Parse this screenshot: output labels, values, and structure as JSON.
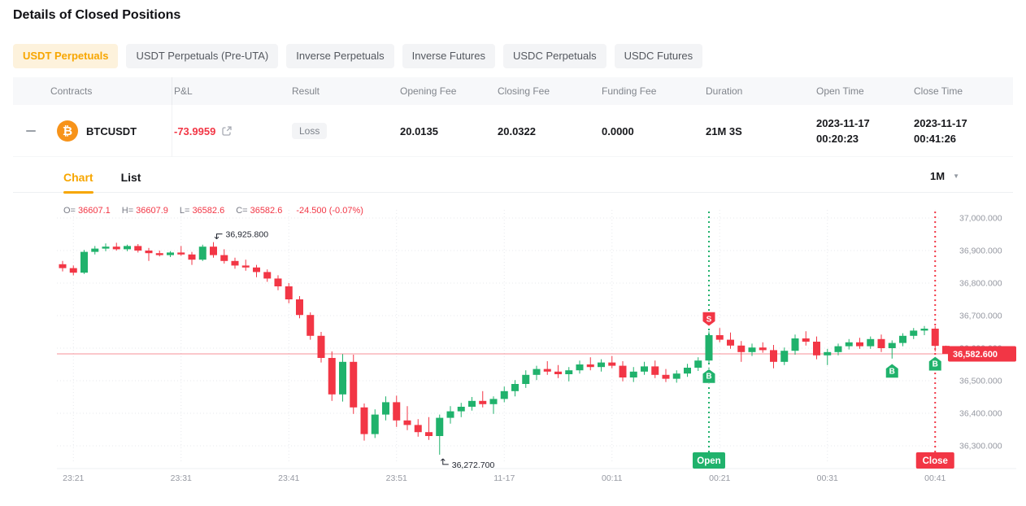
{
  "page": {
    "title": "Details of Closed Positions"
  },
  "tabs": [
    {
      "label": "USDT Perpetuals",
      "active": true
    },
    {
      "label": "USDT Perpetuals (Pre-UTA)",
      "active": false
    },
    {
      "label": "Inverse Perpetuals",
      "active": false
    },
    {
      "label": "Inverse Futures",
      "active": false
    },
    {
      "label": "USDC Perpetuals",
      "active": false
    },
    {
      "label": "USDC Futures",
      "active": false
    }
  ],
  "table": {
    "headers": [
      "Contracts",
      "P&L",
      "Result",
      "Opening Fee",
      "Closing Fee",
      "Funding Fee",
      "Duration",
      "Open Time",
      "Close Time"
    ],
    "row": {
      "contract": "BTCUSDT",
      "pnl": "-73.9959",
      "result": "Loss",
      "opening_fee": "20.0135",
      "closing_fee": "20.0322",
      "funding_fee": "0.0000",
      "duration": "21M 3S",
      "open_date": "2023-11-17",
      "open_clock": "00:20:23",
      "close_date": "2023-11-17",
      "close_clock": "00:41:26"
    }
  },
  "chart_tabs": [
    {
      "label": "Chart",
      "active": true
    },
    {
      "label": "List",
      "active": false
    }
  ],
  "interval": "1M",
  "chart_data": {
    "type": "candlestick",
    "symbol_legend": {
      "parts": [
        {
          "k": "O=",
          "v": "36607.1"
        },
        {
          "k": "H=",
          "v": "36607.9"
        },
        {
          "k": "L=",
          "v": "36582.6"
        },
        {
          "k": "C=",
          "v": "36582.6"
        },
        {
          "k": "",
          "v": "-24.500 (-0.07%)"
        }
      ]
    },
    "colors": {
      "up": "#20b26c",
      "down": "#f23645",
      "accent": "#f7a600",
      "grid": "#e7e9ee",
      "axis_text": "#9598a1",
      "annotation_text": "#1e222d"
    },
    "y_axis": {
      "ticks": [
        {
          "label": "37,000.000",
          "value": 37000
        },
        {
          "label": "36,900.000",
          "value": 36900
        },
        {
          "label": "36,800.000",
          "value": 36800
        },
        {
          "label": "36,700.000",
          "value": 36700
        },
        {
          "label": "36,600.000",
          "value": 36600
        },
        {
          "label": "36,500.000",
          "value": 36500
        },
        {
          "label": "36,400.000",
          "value": 36400
        },
        {
          "label": "36,300.000",
          "value": 36300
        }
      ]
    },
    "x_axis": {
      "ticks": [
        {
          "label": "23:21",
          "index": 1
        },
        {
          "label": "23:31",
          "index": 11
        },
        {
          "label": "23:41",
          "index": 21
        },
        {
          "label": "23:51",
          "index": 31
        },
        {
          "label": "11-17",
          "index": 41
        },
        {
          "label": "00:11",
          "index": 51
        },
        {
          "label": "00:21",
          "index": 61
        },
        {
          "label": "00:31",
          "index": 71
        },
        {
          "label": "00:41",
          "index": 81
        }
      ]
    },
    "last_price": {
      "label": "36,582.600",
      "value": 36582.6
    },
    "annotations": [
      {
        "index": 14,
        "text": "36,925.800",
        "place": "high"
      },
      {
        "index": 35,
        "text": "36,272.700",
        "place": "low"
      }
    ],
    "trade_markers": [
      {
        "index": 60,
        "letter": "S",
        "side": "above",
        "color": "down"
      },
      {
        "index": 60,
        "letter": "B",
        "side": "below",
        "color": "up"
      },
      {
        "index": 77,
        "letter": "B",
        "side": "below",
        "color": "up"
      },
      {
        "index": 81,
        "letter": "B",
        "side": "below",
        "color": "up"
      }
    ],
    "trade_lines": [
      {
        "index": 60,
        "label": "Open",
        "color": "up"
      },
      {
        "index": 81,
        "label": "Close",
        "color": "down"
      }
    ],
    "candles": [
      [
        36858,
        36868,
        36836,
        36846
      ],
      [
        36846,
        36854,
        36824,
        36832
      ],
      [
        36832,
        36902,
        36828,
        36896
      ],
      [
        36896,
        36914,
        36888,
        36906
      ],
      [
        36906,
        36922,
        36898,
        36912
      ],
      [
        36912,
        36924,
        36900,
        36904
      ],
      [
        36904,
        36918,
        36898,
        36914
      ],
      [
        36914,
        36920,
        36894,
        36900
      ],
      [
        36900,
        36908,
        36868,
        36892
      ],
      [
        36892,
        36900,
        36882,
        36886
      ],
      [
        36886,
        36898,
        36880,
        36894
      ],
      [
        36894,
        36914,
        36884,
        36888
      ],
      [
        36888,
        36896,
        36856,
        36872
      ],
      [
        36872,
        36918,
        36868,
        36912
      ],
      [
        36912,
        36925.8,
        36878,
        36886
      ],
      [
        36886,
        36904,
        36860,
        36868
      ],
      [
        36868,
        36878,
        36844,
        36854
      ],
      [
        36854,
        36872,
        36838,
        36848
      ],
      [
        36848,
        36856,
        36818,
        36834
      ],
      [
        36834,
        36842,
        36804,
        36814
      ],
      [
        36814,
        36824,
        36778,
        36790
      ],
      [
        36790,
        36800,
        36738,
        36750
      ],
      [
        36750,
        36760,
        36692,
        36702
      ],
      [
        36702,
        36710,
        36626,
        36638
      ],
      [
        36638,
        36650,
        36556,
        36570
      ],
      [
        36570,
        36590,
        36438,
        36458
      ],
      [
        36458,
        36582,
        36436,
        36558
      ],
      [
        36558,
        36580,
        36398,
        36418
      ],
      [
        36418,
        36430,
        36316,
        36336
      ],
      [
        36336,
        36412,
        36324,
        36396
      ],
      [
        36396,
        36452,
        36378,
        36434
      ],
      [
        36434,
        36454,
        36358,
        36378
      ],
      [
        36378,
        36422,
        36348,
        36364
      ],
      [
        36364,
        36382,
        36328,
        36342
      ],
      [
        36342,
        36388,
        36318,
        36330
      ],
      [
        36330,
        36396,
        36272.7,
        36386
      ],
      [
        36386,
        36422,
        36368,
        36406
      ],
      [
        36406,
        36432,
        36388,
        36420
      ],
      [
        36420,
        36450,
        36408,
        36438
      ],
      [
        36438,
        36468,
        36418,
        36428
      ],
      [
        36428,
        36452,
        36398,
        36444
      ],
      [
        36444,
        36482,
        36434,
        36468
      ],
      [
        36468,
        36502,
        36452,
        36490
      ],
      [
        36490,
        36532,
        36478,
        36518
      ],
      [
        36518,
        36546,
        36502,
        36536
      ],
      [
        36536,
        36560,
        36518,
        36528
      ],
      [
        36528,
        36548,
        36508,
        36520
      ],
      [
        36520,
        36542,
        36498,
        36532
      ],
      [
        36532,
        36562,
        36522,
        36550
      ],
      [
        36550,
        36572,
        36532,
        36542
      ],
      [
        36542,
        36566,
        36528,
        36556
      ],
      [
        36556,
        36576,
        36538,
        36546
      ],
      [
        36546,
        36560,
        36498,
        36510
      ],
      [
        36510,
        36542,
        36496,
        36528
      ],
      [
        36528,
        36558,
        36518,
        36544
      ],
      [
        36544,
        36562,
        36508,
        36518
      ],
      [
        36518,
        36536,
        36496,
        36506
      ],
      [
        36506,
        36532,
        36494,
        36522
      ],
      [
        36522,
        36552,
        36512,
        36540
      ],
      [
        36540,
        36572,
        36530,
        36562
      ],
      [
        36562,
        36652,
        36552,
        36640
      ],
      [
        36640,
        36662,
        36618,
        36626
      ],
      [
        36626,
        36648,
        36598,
        36608
      ],
      [
        36608,
        36622,
        36558,
        36588
      ],
      [
        36588,
        36614,
        36576,
        36602
      ],
      [
        36602,
        36618,
        36586,
        36594
      ],
      [
        36594,
        36610,
        36538,
        36558
      ],
      [
        36558,
        36602,
        36548,
        36592
      ],
      [
        36592,
        36642,
        36580,
        36630
      ],
      [
        36630,
        36652,
        36608,
        36620
      ],
      [
        36620,
        36636,
        36566,
        36578
      ],
      [
        36578,
        36598,
        36548,
        36588
      ],
      [
        36588,
        36614,
        36578,
        36606
      ],
      [
        36606,
        36628,
        36596,
        36618
      ],
      [
        36618,
        36632,
        36598,
        36606
      ],
      [
        36606,
        36636,
        36598,
        36628
      ],
      [
        36628,
        36642,
        36588,
        36600
      ],
      [
        36600,
        36624,
        36568,
        36616
      ],
      [
        36616,
        36646,
        36606,
        36638
      ],
      [
        36638,
        36662,
        36628,
        36654
      ],
      [
        36654,
        36668,
        36640,
        36660
      ],
      [
        36660,
        36668,
        36590,
        36607.1
      ],
      [
        36607.1,
        36607.9,
        36582.6,
        36582.6
      ]
    ]
  }
}
